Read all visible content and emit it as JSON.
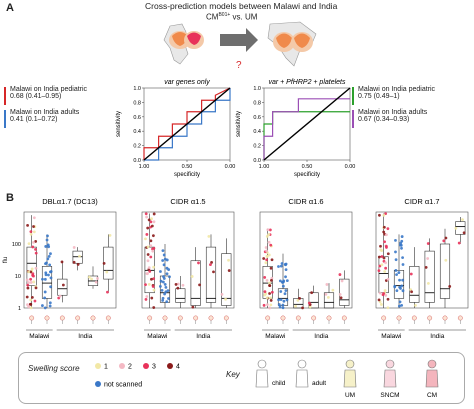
{
  "panel_a": {
    "letter": "A",
    "title": "Cross-prediction models between Malawi and India",
    "comparison": "CM",
    "comparison_sup": "B01+",
    "comparison_rest": " vs. UM",
    "question_mark": "?",
    "left_legend": [
      {
        "label": "Malawi on India pediatric",
        "value": "0.68 (0.41–0.95)",
        "color": "#d62728"
      },
      {
        "label": "Malawi on India adults",
        "value": "0.41 (0.1–0.72)",
        "color": "#3a78c8"
      }
    ],
    "right_legend": [
      {
        "label": "Malawi on India pediatric",
        "value": "0.75 (0.49–1)",
        "color": "#2ca02c"
      },
      {
        "label": "Malawi on India adults",
        "value": "0.67 (0.34–0.93)",
        "color": "#9b4fb5"
      }
    ]
  },
  "panel_b": {
    "letter": "B",
    "y_axis_label": "flu",
    "x_group_labels": [
      "Malawi",
      "India"
    ],
    "charts": [
      {
        "title": "DBLα1.7 (DC13)"
      },
      {
        "title": "CIDR α1.5"
      },
      {
        "title": "CIDR α1.6"
      },
      {
        "title": "CIDR α1.7"
      }
    ]
  },
  "key": {
    "swelling_title": "Swelling score",
    "scores": [
      {
        "label": "1",
        "color": "#f2e8a6"
      },
      {
        "label": "2",
        "color": "#f4b9c4"
      },
      {
        "label": "3",
        "color": "#e8325a"
      },
      {
        "label": "4",
        "color": "#8b1a1a"
      }
    ],
    "not_scanned": {
      "label": "not scanned",
      "color": "#3a78c8"
    },
    "key_title": "Key",
    "figures": [
      "child",
      "adult",
      "UM",
      "SNCM",
      "CM"
    ]
  },
  "chart_data": [
    {
      "type": "line",
      "title": "var genes only",
      "xlabel": "specificity",
      "ylabel": "sensitivity",
      "x_ticks": [
        "1.00",
        "0.50",
        "0.00"
      ],
      "y_ticks": [
        "0.0",
        "0.2",
        "0.4",
        "0.6",
        "0.8",
        "1.0"
      ],
      "xlim": [
        1.0,
        0.0
      ],
      "ylim": [
        0.0,
        1.0
      ],
      "series": [
        {
          "color": "#d62728",
          "x": [
            1.0,
            1.0,
            0.83,
            0.83,
            0.67,
            0.67,
            0.5,
            0.5,
            0.33,
            0.33,
            0.17,
            0.17,
            0.0
          ],
          "y": [
            0.0,
            0.17,
            0.17,
            0.33,
            0.33,
            0.5,
            0.5,
            0.67,
            0.67,
            0.83,
            0.83,
            0.9,
            1.0
          ]
        },
        {
          "color": "#3a78c8",
          "x": [
            1.0,
            1.0,
            0.83,
            0.83,
            0.67,
            0.67,
            0.5,
            0.5,
            0.33,
            0.33,
            0.17,
            0.17,
            0.0,
            0.0
          ],
          "y": [
            0.0,
            0.0,
            0.0,
            0.17,
            0.17,
            0.33,
            0.33,
            0.5,
            0.5,
            0.67,
            0.67,
            0.83,
            0.83,
            1.0
          ]
        },
        {
          "color": "#000000",
          "x": [
            1.0,
            0.0
          ],
          "y": [
            0.0,
            1.0
          ]
        }
      ]
    },
    {
      "type": "line",
      "title": "var + PfHRP2 + platelets",
      "xlabel": "specificity",
      "ylabel": "sensitivity",
      "x_ticks": [
        "1.00",
        "0.50",
        "0.00"
      ],
      "y_ticks": [
        "0.0",
        "0.2",
        "0.4",
        "0.6",
        "0.8",
        "1.0"
      ],
      "xlim": [
        1.0,
        0.0
      ],
      "ylim": [
        0.0,
        1.0
      ],
      "series": [
        {
          "color": "#2ca02c",
          "x": [
            1.0,
            1.0,
            0.9,
            0.9,
            0.0
          ],
          "y": [
            0.0,
            0.5,
            0.5,
            0.67,
            0.67
          ]
        },
        {
          "color": "#9b4fb5",
          "x": [
            1.0,
            1.0,
            0.9,
            0.9,
            0.6,
            0.6,
            0.0
          ],
          "y": [
            0.0,
            0.33,
            0.33,
            0.67,
            0.67,
            0.85,
            0.85
          ]
        },
        {
          "color": "#000000",
          "x": [
            1.0,
            0.0
          ],
          "y": [
            0.0,
            1.0
          ]
        }
      ]
    },
    {
      "type": "scatter",
      "title": "DBLα1.7 (DC13)",
      "ylabel": "flu",
      "y_scale": "log",
      "y_ticks": [
        "1",
        "10",
        "100"
      ],
      "groups": [
        "Malawi",
        "Malawi",
        "India",
        "India",
        "India",
        "India"
      ],
      "boxes": [
        {
          "q1": 5,
          "median": 25,
          "q3": 80,
          "lo": 1,
          "hi": 800
        },
        {
          "q1": 2,
          "median": 6,
          "q3": 20,
          "lo": 1,
          "hi": 200
        },
        {
          "q1": 2.5,
          "median": 4,
          "q3": 8,
          "lo": 1.5,
          "hi": 30
        },
        {
          "q1": 25,
          "median": 40,
          "q3": 60,
          "lo": 15,
          "hi": 80
        },
        {
          "q1": 5,
          "median": 7,
          "q3": 10,
          "lo": 4,
          "hi": 20
        },
        {
          "q1": 8,
          "median": 15,
          "q3": 80,
          "lo": 3,
          "hi": 200
        }
      ]
    },
    {
      "type": "scatter",
      "title": "CIDR α1.5",
      "ylabel": "flu",
      "y_scale": "log",
      "groups": [
        "Malawi",
        "Malawi",
        "India",
        "India",
        "India",
        "India"
      ],
      "boxes": [
        {
          "q1": 3,
          "median": 15,
          "q3": 80,
          "lo": 1,
          "hi": 900
        },
        {
          "q1": 1.5,
          "median": 3,
          "q3": 10,
          "lo": 1,
          "hi": 100
        },
        {
          "q1": 1.5,
          "median": 2,
          "q3": 4,
          "lo": 1,
          "hi": 10
        },
        {
          "q1": 1.2,
          "median": 2,
          "q3": 30,
          "lo": 1,
          "hi": 80
        },
        {
          "q1": 1.5,
          "median": 2,
          "q3": 80,
          "lo": 1,
          "hi": 200
        },
        {
          "q1": 1.2,
          "median": 2,
          "q3": 50,
          "lo": 1,
          "hi": 150
        }
      ]
    },
    {
      "type": "scatter",
      "title": "CIDR α1.6",
      "ylabel": "flu",
      "y_scale": "log",
      "groups": [
        "Malawi",
        "Malawi",
        "India",
        "India",
        "India",
        "India"
      ],
      "boxes": [
        {
          "q1": 2,
          "median": 6,
          "q3": 20,
          "lo": 1,
          "hi": 300
        },
        {
          "q1": 1.2,
          "median": 2,
          "q3": 4,
          "lo": 1,
          "hi": 50
        },
        {
          "q1": 1,
          "median": 1.3,
          "q3": 2,
          "lo": 1,
          "hi": 4
        },
        {
          "q1": 1,
          "median": 1.5,
          "q3": 3,
          "lo": 1,
          "hi": 5
        },
        {
          "q1": 1,
          "median": 1.5,
          "q3": 3,
          "lo": 1,
          "hi": 6
        },
        {
          "q1": 1.2,
          "median": 1.8,
          "q3": 8,
          "lo": 1,
          "hi": 15
        }
      ]
    },
    {
      "type": "scatter",
      "title": "CIDR α1.7",
      "ylabel": "flu",
      "y_scale": "log",
      "groups": [
        "Malawi",
        "Malawi",
        "India",
        "India",
        "India",
        "India"
      ],
      "boxes": [
        {
          "q1": 3,
          "median": 12,
          "q3": 40,
          "lo": 1,
          "hi": 900
        },
        {
          "q1": 2,
          "median": 5,
          "q3": 15,
          "lo": 1,
          "hi": 200
        },
        {
          "q1": 1.5,
          "median": 2.5,
          "q3": 20,
          "lo": 1,
          "hi": 80
        },
        {
          "q1": 1.5,
          "median": 3,
          "q3": 60,
          "lo": 1,
          "hi": 150
        },
        {
          "q1": 2,
          "median": 4,
          "q3": 100,
          "lo": 1,
          "hi": 300
        },
        {
          "q1": 200,
          "median": 350,
          "q3": 500,
          "lo": 100,
          "hi": 700
        }
      ]
    }
  ]
}
